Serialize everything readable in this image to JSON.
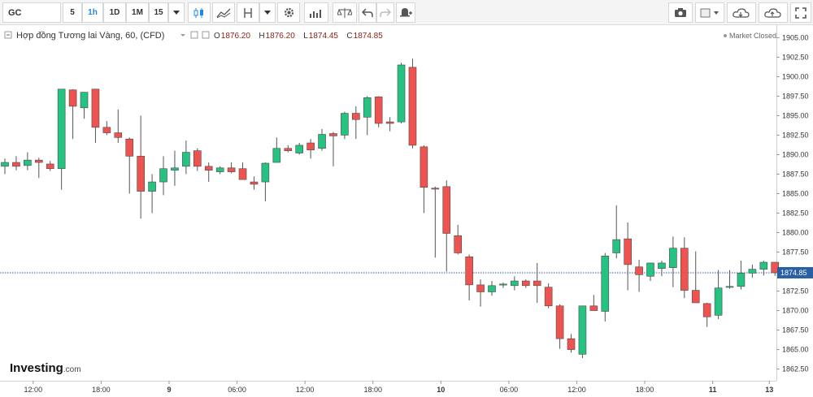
{
  "toolbar": {
    "symbol": "GC",
    "intervals": [
      "5",
      "1h",
      "1D",
      "1M",
      "15"
    ],
    "active_interval": "1h"
  },
  "legend": {
    "title": "Hợp đồng Tương lai Vàng, 60, (CFD)",
    "open_label": "O",
    "open": "1876.20",
    "high_label": "H",
    "high": "1876.20",
    "low_label": "L",
    "low": "1874.45",
    "close_label": "C",
    "close": "1874.85"
  },
  "status": "Market Closed",
  "logo": {
    "main": "Investing",
    "suffix": ".com"
  },
  "colors": {
    "up": "#26c281",
    "down": "#ef5350",
    "wick": "#555555",
    "last_price_line": "#2a5fa6",
    "price_tag": "#2a5fa6"
  },
  "chart_data": {
    "type": "candlestick",
    "ylim": [
      1861.0,
      1906.6
    ],
    "y_ticks": [
      1905.0,
      1902.5,
      1900.0,
      1897.5,
      1895.0,
      1892.5,
      1890.0,
      1887.5,
      1885.0,
      1882.5,
      1880.0,
      1877.5,
      1875.0,
      1872.5,
      1870.0,
      1867.5,
      1865.0,
      1862.5
    ],
    "y_tick_labels": [
      "1905.00",
      "1902.50",
      "1900.00",
      "1897.50",
      "1895.00",
      "1892.50",
      "1890.00",
      "1887.50",
      "1885.00",
      "1882.50",
      "1880.00",
      "1877.50",
      "1875.00",
      "1872.50",
      "1870.00",
      "1867.50",
      "1865.00",
      "1862.50"
    ],
    "x_ticks": [
      {
        "label": "12:00",
        "index": 2.5
      },
      {
        "label": "18:00",
        "index": 8.5
      },
      {
        "label": "9",
        "index": 14.5
      },
      {
        "label": "06:00",
        "index": 20.5
      },
      {
        "label": "12:00",
        "index": 26.5
      },
      {
        "label": "18:00",
        "index": 32.5
      },
      {
        "label": "10",
        "index": 38.5
      },
      {
        "label": "06:00",
        "index": 44.5
      },
      {
        "label": "12:00",
        "index": 50.5
      },
      {
        "label": "18:00",
        "index": 56.5
      },
      {
        "label": "11",
        "index": 62.5
      },
      {
        "label": "13",
        "index": 67.5
      }
    ],
    "last_price": 1874.85,
    "last_price_label": "1874.85",
    "candles": [
      {
        "o": 1888.5,
        "h": 1889.5,
        "l": 1887.5,
        "c": 1889.0
      },
      {
        "o": 1889.0,
        "h": 1889.8,
        "l": 1888.0,
        "c": 1888.5
      },
      {
        "o": 1888.6,
        "h": 1890.3,
        "l": 1888.0,
        "c": 1889.3
      },
      {
        "o": 1889.3,
        "h": 1889.6,
        "l": 1887.0,
        "c": 1889.0
      },
      {
        "o": 1888.8,
        "h": 1889.2,
        "l": 1887.9,
        "c": 1888.2
      },
      {
        "o": 1888.2,
        "h": 1898.4,
        "l": 1885.5,
        "c": 1898.4
      },
      {
        "o": 1898.3,
        "h": 1898.4,
        "l": 1892.0,
        "c": 1896.2
      },
      {
        "o": 1896.0,
        "h": 1898.0,
        "l": 1894.6,
        "c": 1898.0
      },
      {
        "o": 1898.4,
        "h": 1898.4,
        "l": 1891.5,
        "c": 1893.5
      },
      {
        "o": 1893.5,
        "h": 1894.3,
        "l": 1892.5,
        "c": 1892.8
      },
      {
        "o": 1892.8,
        "h": 1895.8,
        "l": 1891.5,
        "c": 1892.2
      },
      {
        "o": 1892.0,
        "h": 1892.2,
        "l": 1885.0,
        "c": 1889.8
      },
      {
        "o": 1889.8,
        "h": 1895.0,
        "l": 1881.8,
        "c": 1885.3
      },
      {
        "o": 1885.3,
        "h": 1887.5,
        "l": 1882.5,
        "c": 1886.5
      },
      {
        "o": 1886.5,
        "h": 1889.8,
        "l": 1884.8,
        "c": 1888.2
      },
      {
        "o": 1888.0,
        "h": 1890.5,
        "l": 1886.0,
        "c": 1888.3
      },
      {
        "o": 1888.5,
        "h": 1891.8,
        "l": 1887.5,
        "c": 1890.3
      },
      {
        "o": 1890.5,
        "h": 1890.8,
        "l": 1887.9,
        "c": 1888.5
      },
      {
        "o": 1888.5,
        "h": 1889.0,
        "l": 1886.5,
        "c": 1888.0
      },
      {
        "o": 1887.8,
        "h": 1888.5,
        "l": 1887.5,
        "c": 1888.3
      },
      {
        "o": 1888.3,
        "h": 1889.0,
        "l": 1887.6,
        "c": 1887.8
      },
      {
        "o": 1888.2,
        "h": 1889.0,
        "l": 1886.8,
        "c": 1886.8
      },
      {
        "o": 1886.5,
        "h": 1887.2,
        "l": 1885.5,
        "c": 1886.2
      },
      {
        "o": 1886.5,
        "h": 1889.0,
        "l": 1884.0,
        "c": 1888.9
      },
      {
        "o": 1889.0,
        "h": 1892.2,
        "l": 1889.0,
        "c": 1890.8
      },
      {
        "o": 1890.8,
        "h": 1891.2,
        "l": 1890.3,
        "c": 1890.5
      },
      {
        "o": 1890.2,
        "h": 1891.5,
        "l": 1890.0,
        "c": 1891.2
      },
      {
        "o": 1891.5,
        "h": 1892.0,
        "l": 1889.5,
        "c": 1890.6
      },
      {
        "o": 1890.8,
        "h": 1893.3,
        "l": 1890.5,
        "c": 1892.6
      },
      {
        "o": 1892.7,
        "h": 1892.9,
        "l": 1888.5,
        "c": 1892.4
      },
      {
        "o": 1892.5,
        "h": 1895.5,
        "l": 1892.0,
        "c": 1895.3
      },
      {
        "o": 1895.3,
        "h": 1896.2,
        "l": 1892.0,
        "c": 1894.5
      },
      {
        "o": 1894.8,
        "h": 1897.5,
        "l": 1892.5,
        "c": 1897.3
      },
      {
        "o": 1897.4,
        "h": 1897.5,
        "l": 1893.5,
        "c": 1894.0
      },
      {
        "o": 1894.2,
        "h": 1894.8,
        "l": 1893.0,
        "c": 1894.0
      },
      {
        "o": 1894.2,
        "h": 1901.8,
        "l": 1894.0,
        "c": 1901.5
      },
      {
        "o": 1901.2,
        "h": 1902.3,
        "l": 1890.8,
        "c": 1891.2
      },
      {
        "o": 1891.0,
        "h": 1891.2,
        "l": 1882.5,
        "c": 1885.8
      },
      {
        "o": 1885.7,
        "h": 1885.9,
        "l": 1876.8,
        "c": 1885.6
      },
      {
        "o": 1885.9,
        "h": 1886.7,
        "l": 1875.0,
        "c": 1879.9
      },
      {
        "o": 1879.6,
        "h": 1881.0,
        "l": 1877.2,
        "c": 1877.4
      },
      {
        "o": 1876.9,
        "h": 1877.2,
        "l": 1871.3,
        "c": 1873.3
      },
      {
        "o": 1873.3,
        "h": 1874.0,
        "l": 1870.5,
        "c": 1872.4
      },
      {
        "o": 1872.4,
        "h": 1873.8,
        "l": 1871.9,
        "c": 1873.2
      },
      {
        "o": 1873.3,
        "h": 1873.6,
        "l": 1872.9,
        "c": 1873.4
      },
      {
        "o": 1873.2,
        "h": 1874.4,
        "l": 1872.6,
        "c": 1873.8
      },
      {
        "o": 1873.8,
        "h": 1874.0,
        "l": 1872.9,
        "c": 1873.2
      },
      {
        "o": 1873.8,
        "h": 1876.1,
        "l": 1871.0,
        "c": 1873.2
      },
      {
        "o": 1873.0,
        "h": 1873.5,
        "l": 1870.3,
        "c": 1870.6
      },
      {
        "o": 1870.6,
        "h": 1870.8,
        "l": 1865.1,
        "c": 1866.4
      },
      {
        "o": 1866.4,
        "h": 1867.0,
        "l": 1864.6,
        "c": 1865.0
      },
      {
        "o": 1864.4,
        "h": 1870.6,
        "l": 1863.9,
        "c": 1870.6
      },
      {
        "o": 1870.6,
        "h": 1872.0,
        "l": 1870.0,
        "c": 1870.0
      },
      {
        "o": 1869.9,
        "h": 1877.4,
        "l": 1868.6,
        "c": 1877.0
      },
      {
        "o": 1877.4,
        "h": 1883.5,
        "l": 1876.7,
        "c": 1879.1
      },
      {
        "o": 1879.2,
        "h": 1881.3,
        "l": 1872.6,
        "c": 1875.9
      },
      {
        "o": 1875.6,
        "h": 1876.5,
        "l": 1872.4,
        "c": 1874.6
      },
      {
        "o": 1874.4,
        "h": 1876.1,
        "l": 1873.8,
        "c": 1876.1
      },
      {
        "o": 1875.4,
        "h": 1876.4,
        "l": 1874.4,
        "c": 1876.1
      },
      {
        "o": 1875.5,
        "h": 1879.5,
        "l": 1873.0,
        "c": 1878.0
      },
      {
        "o": 1878.0,
        "h": 1879.4,
        "l": 1871.6,
        "c": 1872.6
      },
      {
        "o": 1872.6,
        "h": 1877.6,
        "l": 1871.4,
        "c": 1871.0
      },
      {
        "o": 1870.9,
        "h": 1871.0,
        "l": 1867.9,
        "c": 1869.2
      },
      {
        "o": 1869.4,
        "h": 1875.2,
        "l": 1868.9,
        "c": 1872.9
      },
      {
        "o": 1873.1,
        "h": 1875.2,
        "l": 1872.8,
        "c": 1873.1
      },
      {
        "o": 1873.1,
        "h": 1876.4,
        "l": 1872.7,
        "c": 1874.8
      },
      {
        "o": 1874.8,
        "h": 1875.9,
        "l": 1874.2,
        "c": 1875.3
      },
      {
        "o": 1875.3,
        "h": 1876.4,
        "l": 1874.5,
        "c": 1876.2
      },
      {
        "o": 1876.2,
        "h": 1876.2,
        "l": 1874.45,
        "c": 1874.85
      }
    ]
  }
}
